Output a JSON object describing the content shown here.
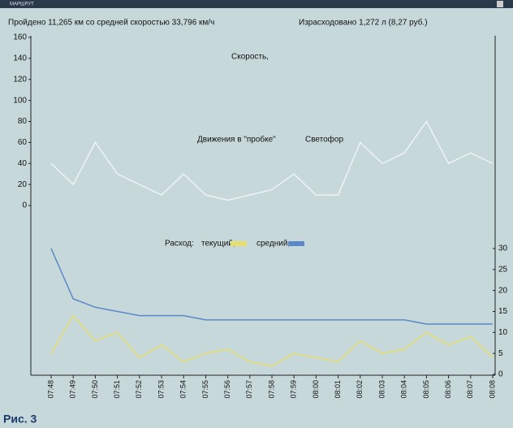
{
  "window_title": "МАРШРУТ",
  "header": {
    "distance": "Пройдено  11,265 км  со средней скоростью  33,796 км/ч",
    "fuel": "Израсходовано  1,272 л (8,27 руб.)"
  },
  "caption": "Рис. 3",
  "chart_data": [
    {
      "type": "line",
      "title": "Скорость,",
      "annotations": [
        "Движения в \"пробке\"",
        "Светофор"
      ],
      "series": [
        {
          "name": "Скорость",
          "color": "#eef3f4",
          "values": [
            40,
            20,
            60,
            30,
            20,
            10,
            30,
            10,
            5,
            10,
            15,
            30,
            10,
            10,
            60,
            40,
            50,
            80,
            40,
            50,
            40
          ]
        }
      ],
      "ylim": [
        0,
        160
      ],
      "yticks": [
        0,
        20,
        40,
        60,
        80,
        100,
        120,
        140,
        160
      ]
    },
    {
      "type": "line",
      "title": "Расход:",
      "categories": [
        "07:48",
        "07:49",
        "07:50",
        "07:51",
        "07:52",
        "07:53",
        "07:54",
        "07:55",
        "07:56",
        "07:57",
        "07:58",
        "07:59",
        "08:00",
        "08:01",
        "08:02",
        "08:03",
        "08:04",
        "08:05",
        "08:06",
        "08:07",
        "08:08"
      ],
      "series": [
        {
          "name": "текущий,",
          "color": "#e6df6e",
          "axis": "y2",
          "values": [
            5,
            14,
            8,
            10,
            4,
            7,
            3,
            5,
            6,
            3,
            2,
            5,
            4,
            3,
            8,
            5,
            6,
            10,
            7,
            9,
            4
          ]
        },
        {
          "name": "средний,",
          "color": "#5a88c8",
          "axis": "y2",
          "values": [
            30,
            18,
            16,
            15,
            14,
            14,
            14,
            13,
            13,
            13,
            13,
            13,
            13,
            13,
            13,
            13,
            13,
            12,
            12,
            12,
            12
          ]
        }
      ],
      "y2lim": [
        0,
        30
      ],
      "y2ticks": [
        0,
        5,
        10,
        15,
        20,
        25,
        30
      ]
    }
  ]
}
